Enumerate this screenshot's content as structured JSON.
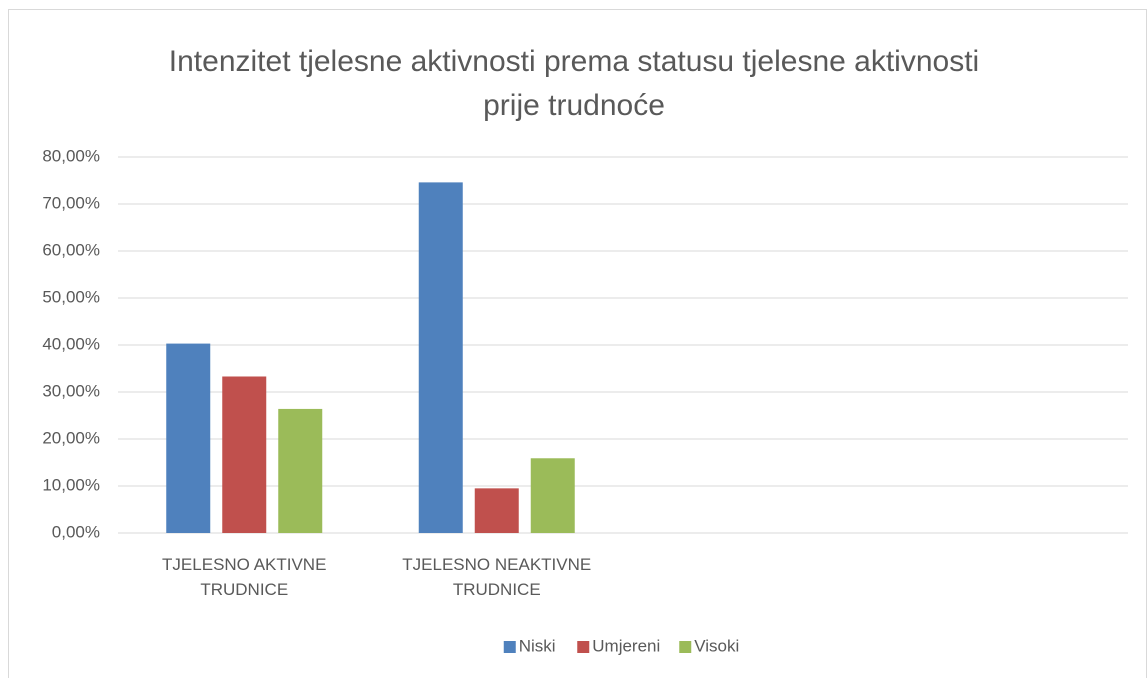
{
  "chart_data": {
    "type": "bar",
    "title": "Intenzitet tjelesne aktivnosti prema statusu tjelesne aktivnosti prije trudnoće",
    "categories": [
      "TJELESNO AKTIVNE TRUDNICE",
      "TJELESNO NEAKTIVNE TRUDNICE",
      null,
      null
    ],
    "series": [
      {
        "name": "Niski",
        "color": "#4f81bd",
        "values": [
          40.3,
          74.6,
          null,
          null
        ]
      },
      {
        "name": "Umjereni",
        "color": "#c0504d",
        "values": [
          33.3,
          9.5,
          null,
          null
        ]
      },
      {
        "name": "Visoki",
        "color": "#9bbb59",
        "values": [
          26.4,
          15.9,
          null,
          null
        ]
      }
    ],
    "ylim": [
      0,
      80
    ],
    "yticks": [
      {
        "value": 0,
        "label": "0,00%"
      },
      {
        "value": 10,
        "label": "10,00%"
      },
      {
        "value": 20,
        "label": "20,00%"
      },
      {
        "value": 30,
        "label": "30,00%"
      },
      {
        "value": 40,
        "label": "40,00%"
      },
      {
        "value": 50,
        "label": "50,00%"
      },
      {
        "value": 60,
        "label": "60,00%"
      },
      {
        "value": 70,
        "label": "70,00%"
      },
      {
        "value": 80,
        "label": "80,00%"
      }
    ],
    "grid": true,
    "legend": "bottom"
  }
}
